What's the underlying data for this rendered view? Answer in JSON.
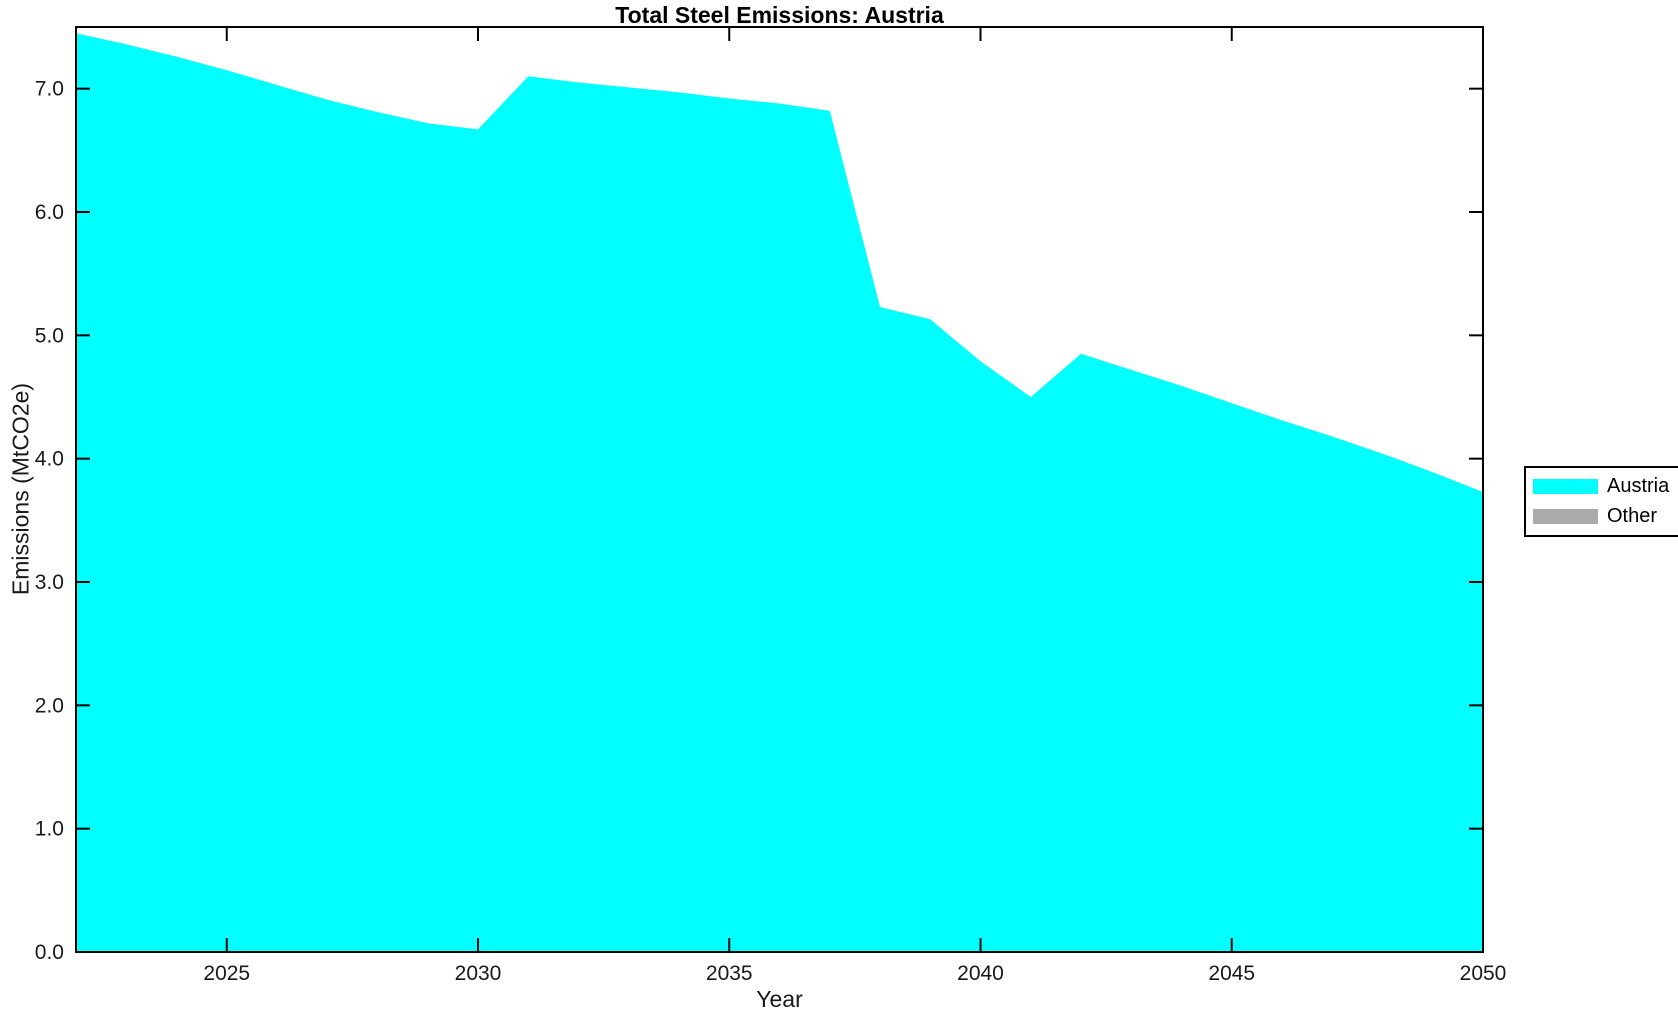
{
  "chart_data": {
    "type": "area",
    "title": "Total Steel Emissions: Austria",
    "xlabel": "Year",
    "ylabel": "Emissions (MtCO2e)",
    "xlim": [
      2022,
      2050
    ],
    "ylim": [
      0,
      7.5
    ],
    "x_ticks": [
      2025,
      2030,
      2035,
      2040,
      2045,
      2050
    ],
    "y_ticks": [
      0,
      1,
      2,
      3,
      4,
      5,
      6,
      7
    ],
    "y_tick_labels": [
      "0.0",
      "1.0",
      "2.0",
      "3.0",
      "4.0",
      "5.0",
      "6.0",
      "7.0"
    ],
    "grid": false,
    "x": [
      2022,
      2023,
      2024,
      2025,
      2026,
      2027,
      2028,
      2029,
      2030,
      2031,
      2032,
      2033,
      2034,
      2035,
      2036,
      2037,
      2038,
      2039,
      2040,
      2041,
      2042,
      2043,
      2044,
      2045,
      2046,
      2047,
      2048,
      2049,
      2050
    ],
    "series": [
      {
        "name": "Austria",
        "color": "#00FFFF",
        "values": [
          7.45,
          7.36,
          7.26,
          7.15,
          7.03,
          6.91,
          6.81,
          6.72,
          6.67,
          7.1,
          7.05,
          7.01,
          6.97,
          6.92,
          6.88,
          6.82,
          5.23,
          5.13,
          4.79,
          4.5,
          4.85,
          4.72,
          4.59,
          4.45,
          4.31,
          4.18,
          4.04,
          3.89,
          3.73
        ]
      }
    ],
    "legend": {
      "position": "outside-right",
      "entries": [
        {
          "label": "Austria",
          "color": "#00FFFF"
        },
        {
          "label": "Other",
          "color": "#ABABAB"
        }
      ]
    }
  }
}
